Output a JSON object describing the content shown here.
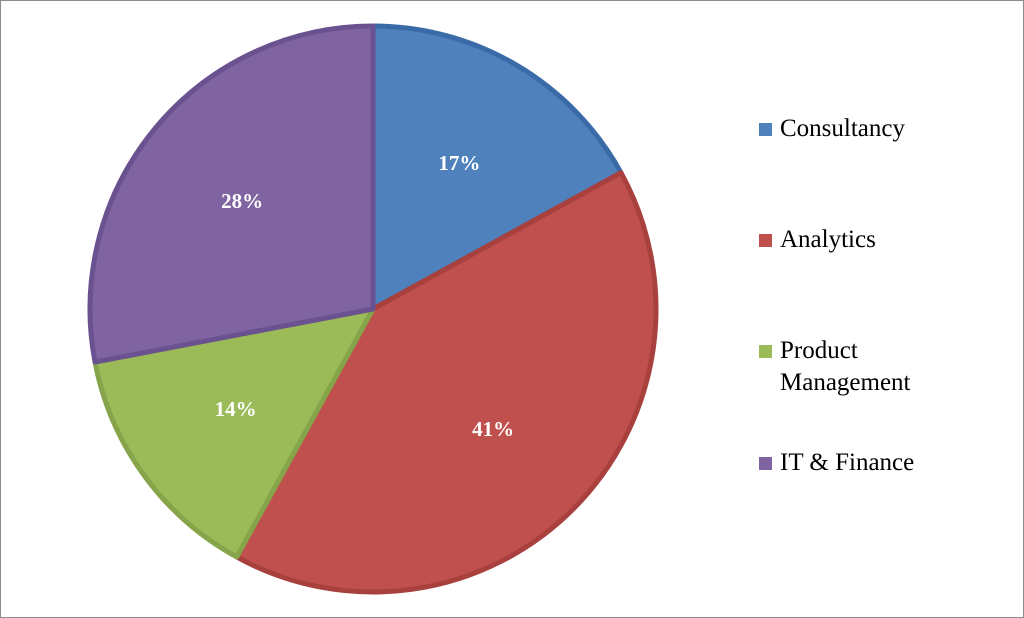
{
  "chart_data": {
    "type": "pie",
    "categories": [
      "Consultancy",
      "Analytics",
      "Product Management",
      "IT & Finance"
    ],
    "values": [
      17,
      41,
      14,
      28
    ],
    "labels": [
      "17%",
      "41%",
      "14%",
      "28%"
    ],
    "colors": [
      "#4F81BD",
      "#C0504D",
      "#9BBB59",
      "#8064A2"
    ],
    "border_colors": [
      "#3A6AA7",
      "#A8403D",
      "#86A44A",
      "#6A5190"
    ],
    "title": "",
    "legend_position": "right",
    "start_angle": "12 o'clock",
    "direction": "clockwise"
  }
}
